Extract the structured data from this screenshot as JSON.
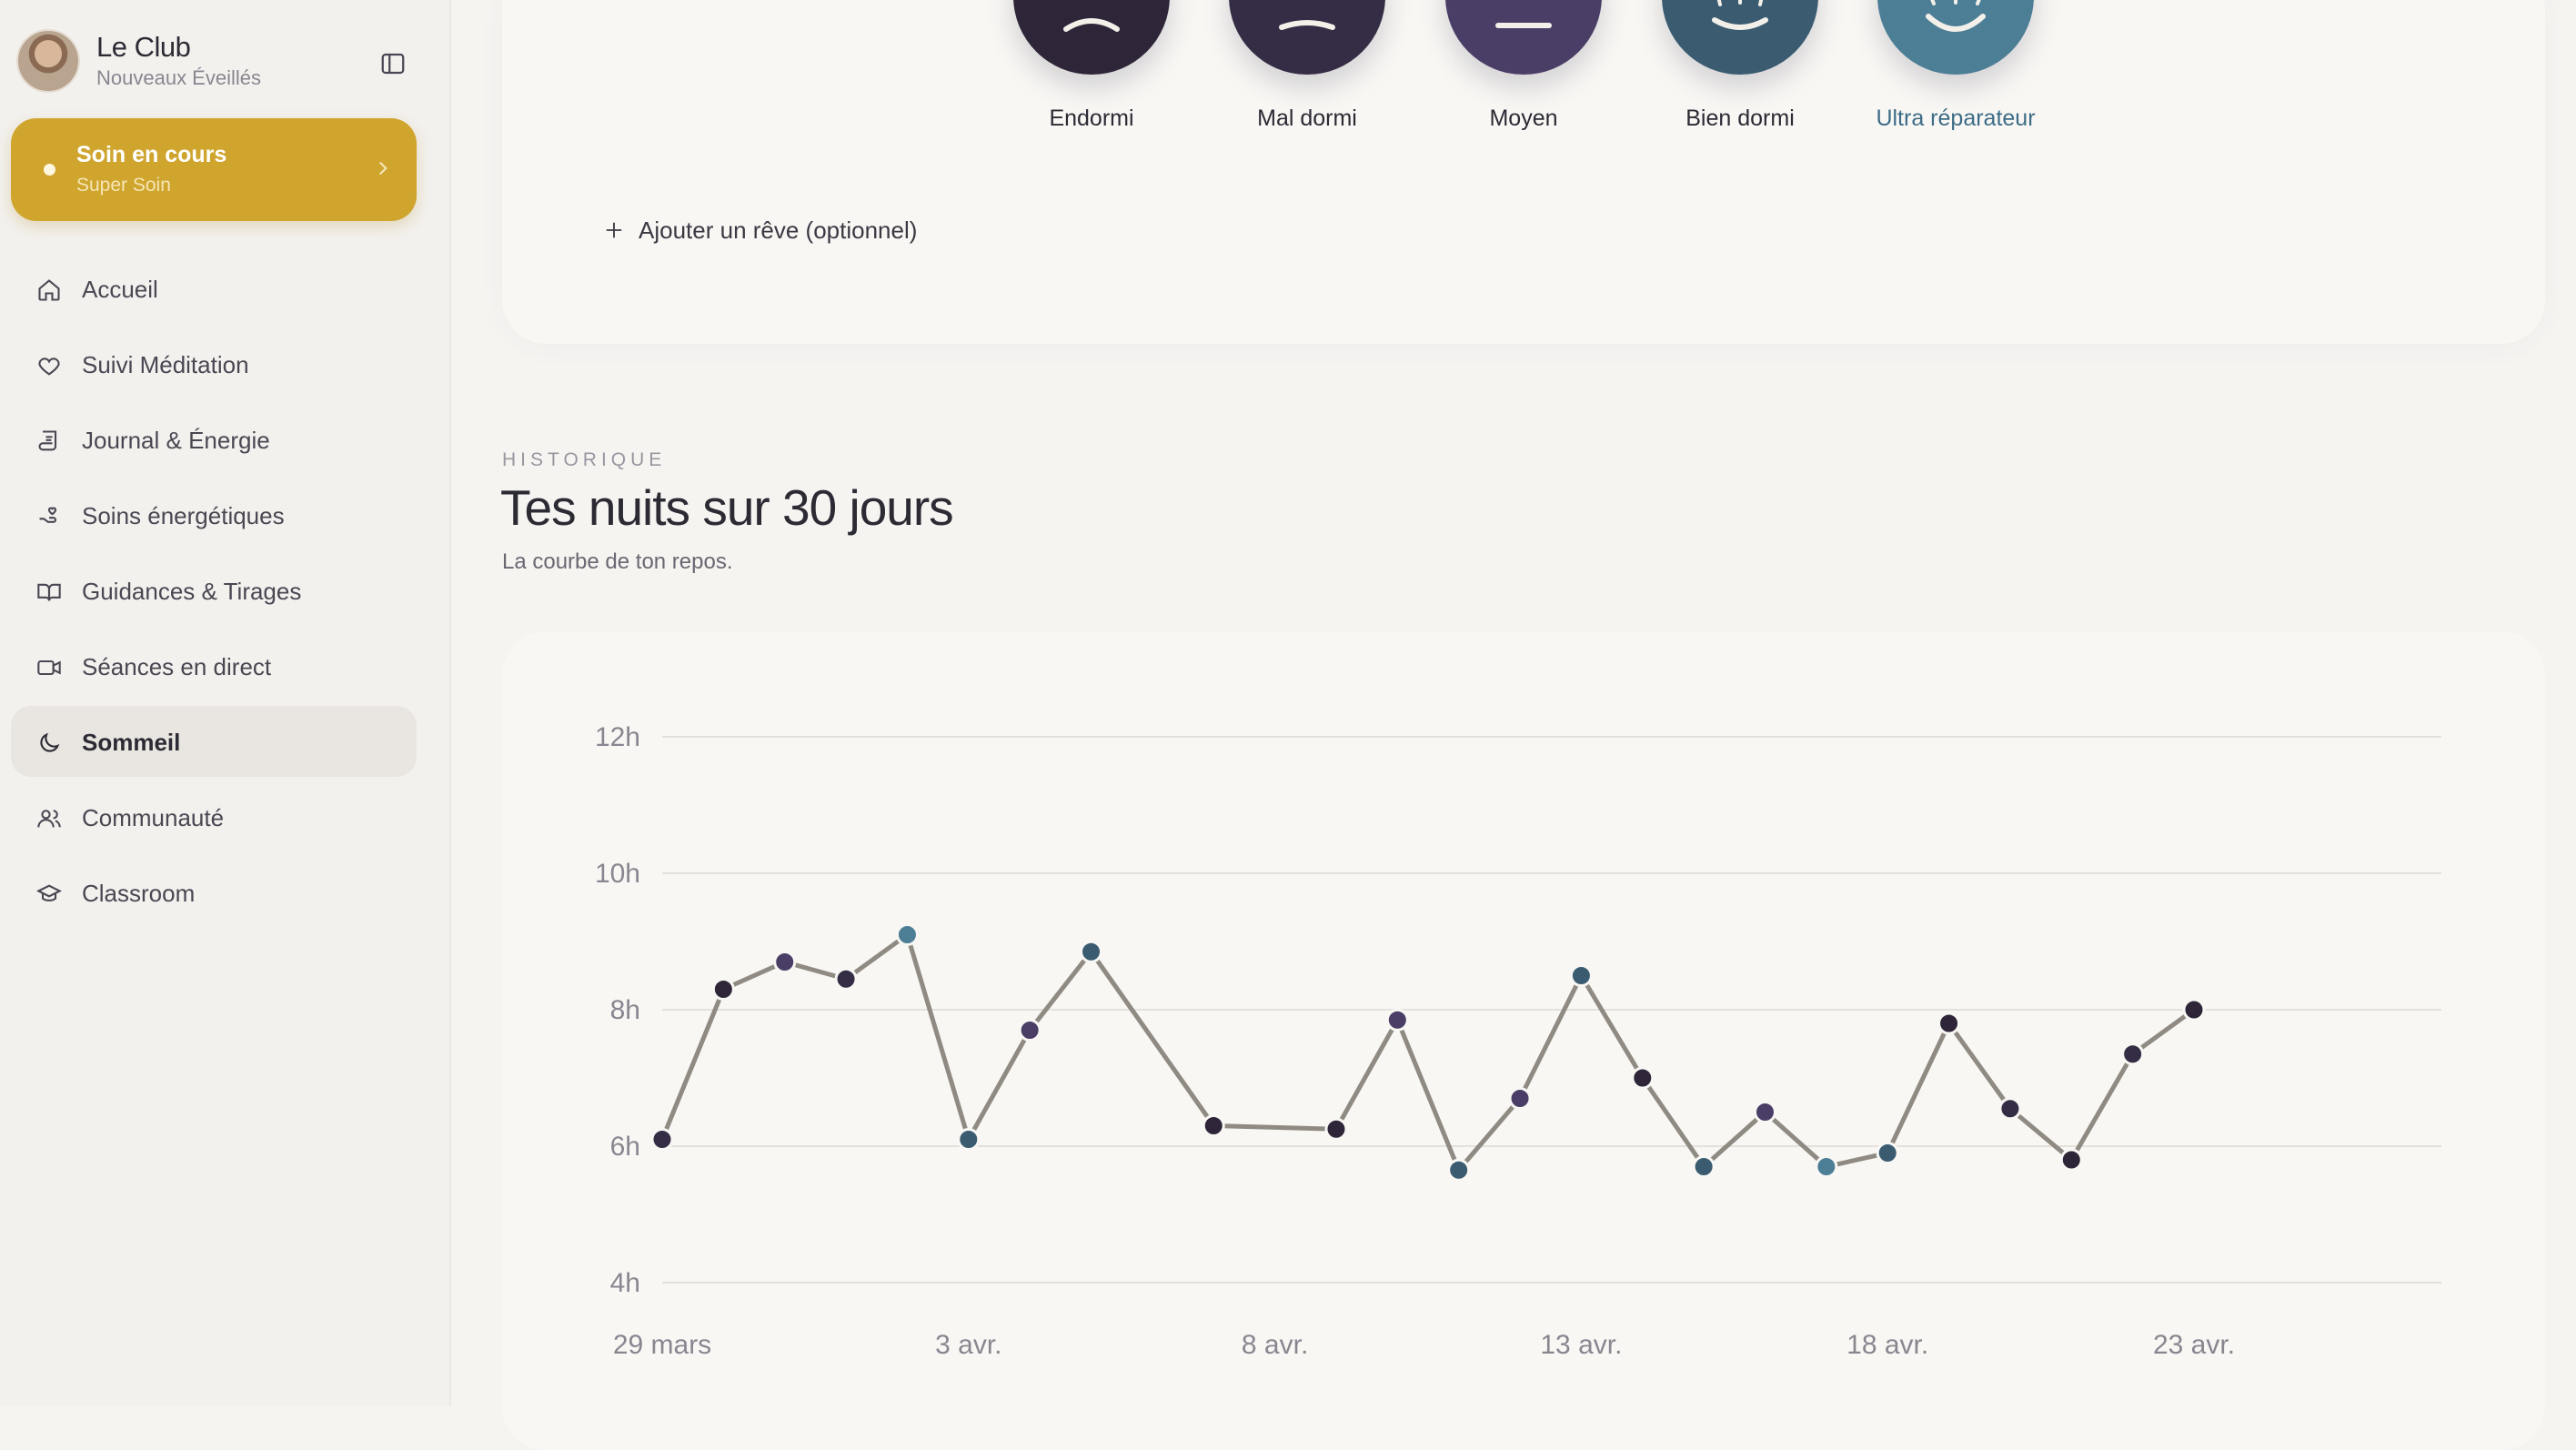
{
  "sidebar": {
    "brand_title": "Le Club",
    "brand_subtitle": "Nouveaux Éveillés",
    "collapse_icon": "sidebar-toggle-icon",
    "now_card": {
      "title": "Soin en cours",
      "subtitle": "Super Soin",
      "color": "#cfa52e"
    },
    "items": [
      {
        "label": "Accueil",
        "icon": "home-icon",
        "active": false
      },
      {
        "label": "Suivi Méditation",
        "icon": "heart-icon",
        "active": false
      },
      {
        "label": "Journal & Énergie",
        "icon": "scroll-icon",
        "active": false
      },
      {
        "label": "Soins énergétiques",
        "icon": "hand-heart-icon",
        "active": false
      },
      {
        "label": "Guidances & Tirages",
        "icon": "book-open-icon",
        "active": false
      },
      {
        "label": "Séances en direct",
        "icon": "video-icon",
        "active": false
      },
      {
        "label": "Sommeil",
        "icon": "moon-icon",
        "active": true
      },
      {
        "label": "Communauté",
        "icon": "users-icon",
        "active": false
      },
      {
        "label": "Classroom",
        "icon": "graduation-cap-icon",
        "active": false
      }
    ]
  },
  "mood": {
    "options": [
      {
        "label": "Endormi",
        "color": "#2e2638"
      },
      {
        "label": "Mal dormi",
        "color": "#352c45"
      },
      {
        "label": "Moyen",
        "color": "#4a3e66"
      },
      {
        "label": "Bien dormi",
        "color": "#3a5b70"
      },
      {
        "label": "Ultra réparateur",
        "color": "#4c7e96"
      }
    ],
    "add_dream": "Ajouter un rêve (optionnel)"
  },
  "history": {
    "eyebrow": "HISTORIQUE",
    "title": "Tes nuits sur 30 jours",
    "subtitle": "La courbe de ton repos."
  },
  "chart_data": {
    "type": "line",
    "title": "",
    "xlabel": "",
    "ylabel": "",
    "ylim": [
      4,
      12
    ],
    "yticks": [
      "4h",
      "6h",
      "8h",
      "10h",
      "12h"
    ],
    "xticks": [
      "29 mars",
      "3 avr.",
      "8 avr.",
      "13 avr.",
      "18 avr.",
      "23 avr."
    ],
    "grid": true,
    "line_color": "#8f8a82",
    "series": [
      {
        "x": [
          "29 mars",
          "30 mars",
          "31 mars",
          "1 avr.",
          "2 avr.",
          "3 avr.",
          "4 avr.",
          "5 avr.",
          "7 avr.",
          "9 avr.",
          "10 avr.",
          "11 avr.",
          "12 avr.",
          "13 avr.",
          "14 avr.",
          "15 avr.",
          "16 avr.",
          "17 avr.",
          "18 avr.",
          "19 avr.",
          "20 avr.",
          "21 avr.",
          "22 avr.",
          "23 avr."
        ],
        "values": [
          6.1,
          8.3,
          8.7,
          8.45,
          9.1,
          6.1,
          7.7,
          8.85,
          6.3,
          6.25,
          7.85,
          5.65,
          6.7,
          8.5,
          7.0,
          5.7,
          6.5,
          5.7,
          5.9,
          7.8,
          6.55,
          5.8,
          7.35,
          8.0
        ],
        "point_colors": [
          "#352c45",
          "#2e2638",
          "#4a3e66",
          "#352c45",
          "#4c7e96",
          "#3a5b70",
          "#4a3e66",
          "#3a5b70",
          "#2e2638",
          "#2e2638",
          "#4a3e66",
          "#3a5b70",
          "#4a3e66",
          "#3a5b70",
          "#2e2638",
          "#3a5b70",
          "#4a3e66",
          "#4c7e96",
          "#3a5b70",
          "#2e2638",
          "#352c45",
          "#2e2638",
          "#352c45",
          "#2e2638"
        ]
      }
    ]
  }
}
